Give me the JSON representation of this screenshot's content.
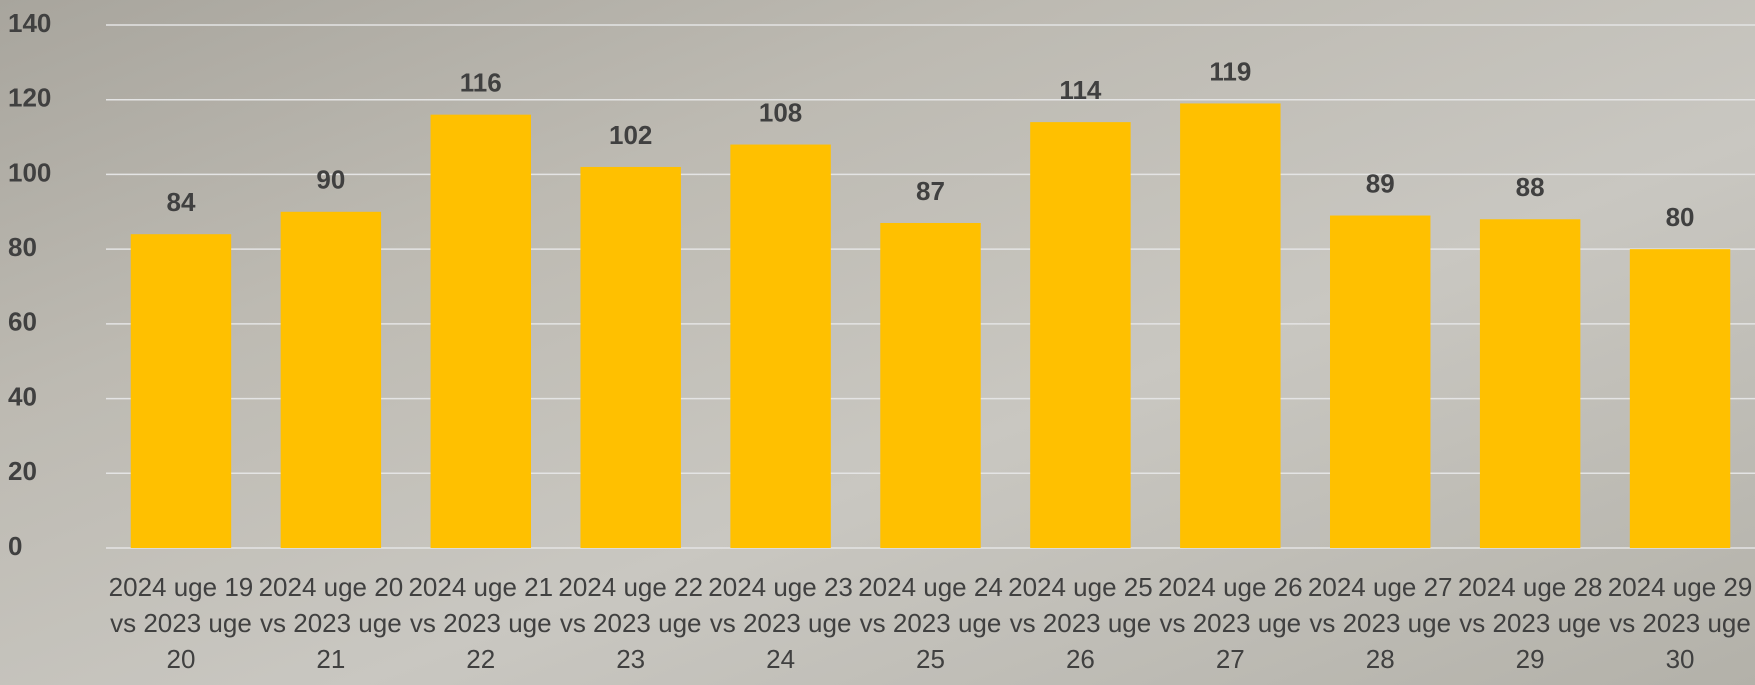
{
  "chart_data": {
    "type": "bar",
    "categories": [
      "2024 uge 19 vs 2023 uge 20",
      "2024 uge 20 vs 2023 uge 21",
      "2024 uge 21 vs 2023 uge 22",
      "2024 uge 22 vs 2023 uge 23",
      "2024 uge 23 vs 2023 uge 24",
      "2024 uge 24 vs 2023 uge 25",
      "2024 uge 25 vs 2023 uge 26",
      "2024 uge 26 vs 2023 uge 27",
      "2024 uge 27 vs 2023 uge 28",
      "2024 uge 28 vs 2023 uge 29",
      "2024 uge 29 vs 2023 uge 30"
    ],
    "values": [
      84,
      90,
      116,
      102,
      108,
      87,
      114,
      119,
      89,
      88,
      80
    ],
    "color": "#ffc000",
    "ylim": [
      0,
      140
    ],
    "yticks": [
      0,
      20,
      40,
      60,
      80,
      100,
      120,
      140
    ],
    "grid": true
  }
}
